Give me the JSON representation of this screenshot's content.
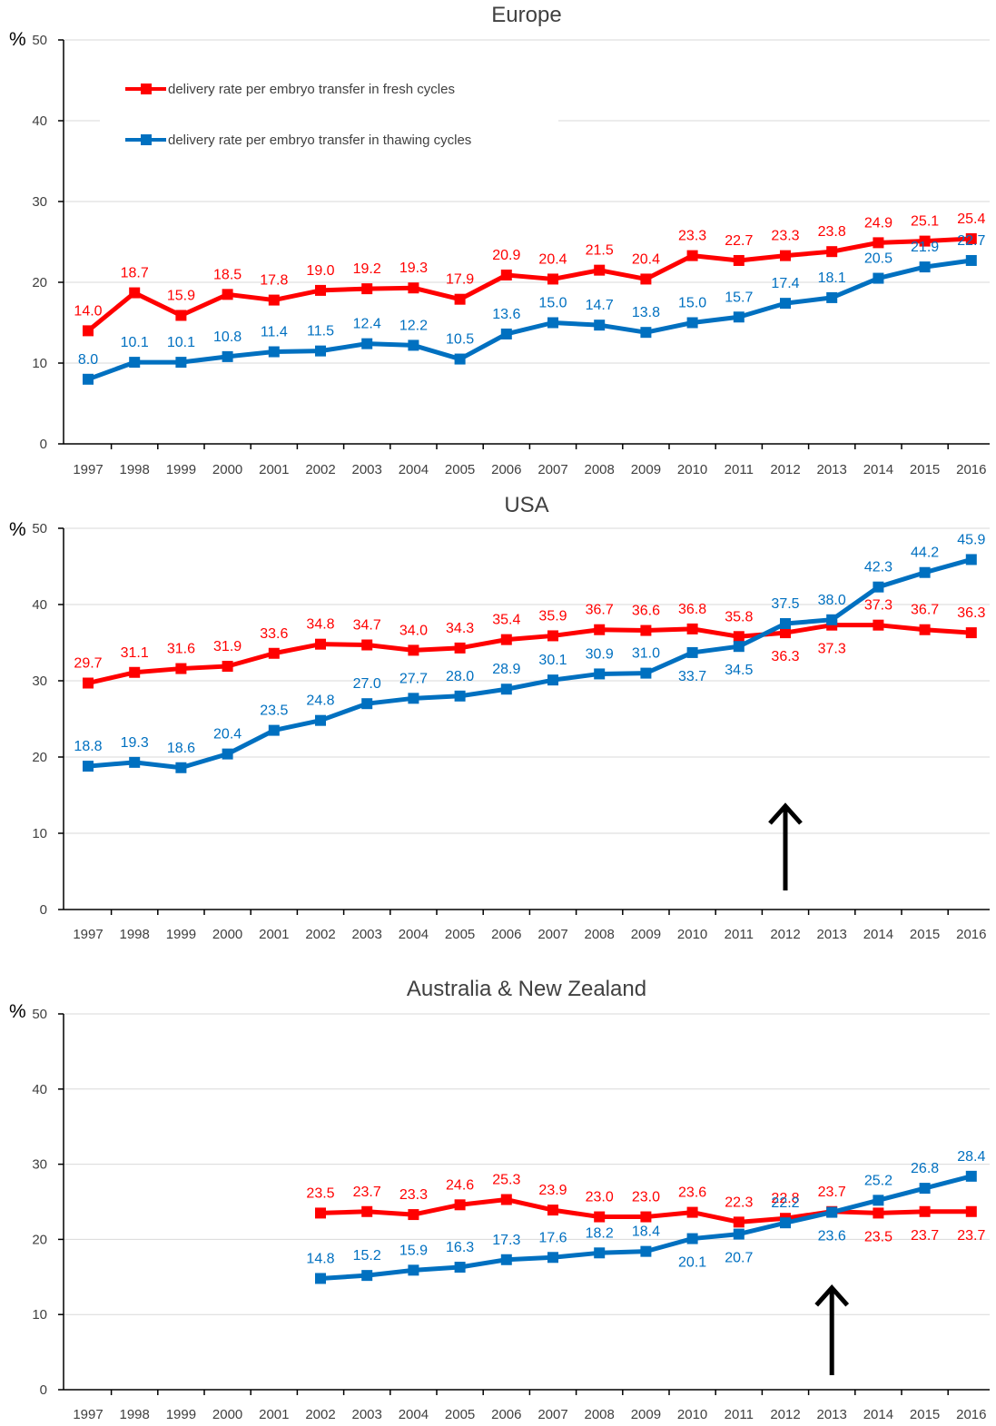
{
  "unit_label": "%",
  "legend": {
    "fresh": "delivery rate per embryo transfer in fresh cycles",
    "thawing": "delivery rate per embryo transfer in thawing cycles"
  },
  "colors": {
    "fresh": "#ff0000",
    "thawing": "#0070c0",
    "axis": "#000000",
    "grid": "#d9d9d9",
    "tick_label": "#404040",
    "arrow": "#000000"
  },
  "chart_data": [
    {
      "type": "line",
      "title": "Europe",
      "ylabel": "%",
      "ylim": [
        0,
        50
      ],
      "yticks": [
        0,
        10,
        20,
        30,
        40,
        50
      ],
      "grid": true,
      "legend_position": "top-left",
      "categories": [
        "1997",
        "1998",
        "1999",
        "2000",
        "2001",
        "2002",
        "2003",
        "2004",
        "2005",
        "2006",
        "2007",
        "2008",
        "2009",
        "2010",
        "2011",
        "2012",
        "2013",
        "2014",
        "2015",
        "2016"
      ],
      "series": [
        {
          "name": "delivery rate per embryo transfer in fresh cycles",
          "key": "fresh",
          "values": [
            14.0,
            18.7,
            15.9,
            18.5,
            17.8,
            19.0,
            19.2,
            19.3,
            17.9,
            20.9,
            20.4,
            21.5,
            20.4,
            23.3,
            22.7,
            23.3,
            23.8,
            24.9,
            25.1,
            25.4
          ]
        },
        {
          "name": "delivery rate per embryo transfer in thawing cycles",
          "key": "thawing",
          "values": [
            8.0,
            10.1,
            10.1,
            10.8,
            11.4,
            11.5,
            12.4,
            12.2,
            10.5,
            13.6,
            15.0,
            14.7,
            13.8,
            15.0,
            15.7,
            17.4,
            18.1,
            20.5,
            21.9,
            22.7
          ]
        }
      ]
    },
    {
      "type": "line",
      "title": "USA",
      "ylabel": "%",
      "ylim": [
        0,
        50
      ],
      "yticks": [
        0,
        10,
        20,
        30,
        40,
        50
      ],
      "grid": true,
      "arrow_at": "2012",
      "categories": [
        "1997",
        "1998",
        "1999",
        "2000",
        "2001",
        "2002",
        "2003",
        "2004",
        "2005",
        "2006",
        "2007",
        "2008",
        "2009",
        "2010",
        "2011",
        "2012",
        "2013",
        "2014",
        "2015",
        "2016"
      ],
      "series": [
        {
          "key": "fresh",
          "values": [
            29.7,
            31.1,
            31.6,
            31.9,
            33.6,
            34.8,
            34.7,
            34.0,
            34.3,
            35.4,
            35.9,
            36.7,
            36.6,
            36.8,
            35.8,
            36.3,
            37.3,
            37.3,
            36.7,
            36.3
          ]
        },
        {
          "key": "thawing",
          "values": [
            18.8,
            19.3,
            18.6,
            20.4,
            23.5,
            24.8,
            27.0,
            27.7,
            28.0,
            28.9,
            30.1,
            30.9,
            31.0,
            33.7,
            34.5,
            37.5,
            38.0,
            42.3,
            44.2,
            45.9
          ]
        }
      ]
    },
    {
      "type": "line",
      "title": "Australia & New Zealand",
      "ylabel": "%",
      "ylim": [
        0,
        50
      ],
      "yticks": [
        0,
        10,
        20,
        30,
        40,
        50
      ],
      "grid": true,
      "arrow_at": "2013",
      "categories": [
        "1997",
        "1998",
        "1999",
        "2000",
        "2001",
        "2002",
        "2003",
        "2004",
        "2005",
        "2006",
        "2007",
        "2008",
        "2009",
        "2010",
        "2011",
        "2012",
        "2013",
        "2014",
        "2015",
        "2016"
      ],
      "series": [
        {
          "key": "fresh",
          "values": [
            null,
            null,
            null,
            null,
            null,
            23.5,
            23.7,
            23.3,
            24.6,
            25.3,
            23.9,
            23.0,
            23.0,
            23.6,
            22.3,
            22.8,
            23.7,
            23.5,
            23.7,
            23.7
          ]
        },
        {
          "key": "thawing",
          "values": [
            null,
            null,
            null,
            null,
            null,
            14.8,
            15.2,
            15.9,
            16.3,
            17.3,
            17.6,
            18.2,
            18.4,
            20.1,
            20.7,
            22.2,
            23.6,
            25.2,
            26.8,
            28.4
          ]
        }
      ]
    }
  ]
}
